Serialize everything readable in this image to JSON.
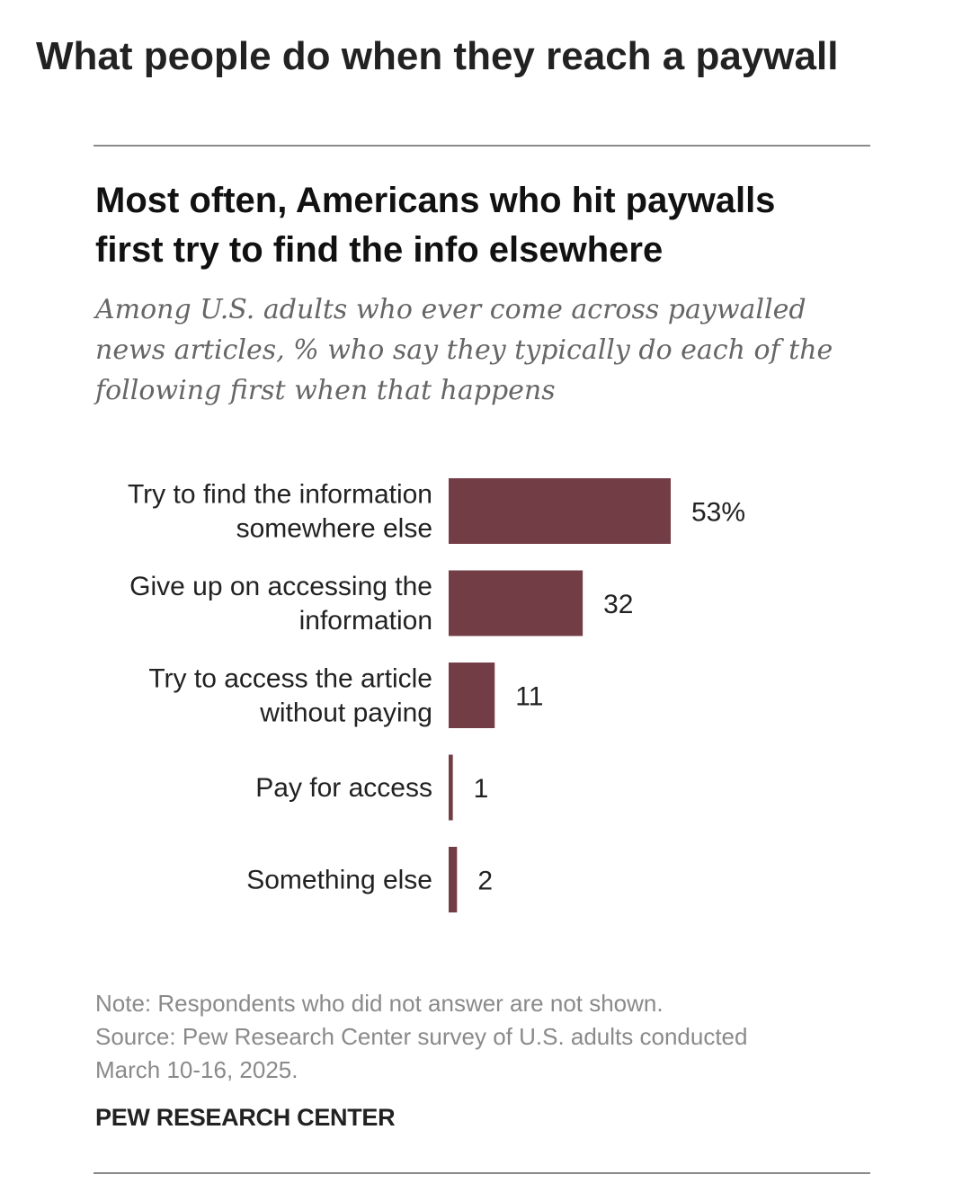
{
  "page": {
    "title": "What people do when they reach a paywall"
  },
  "chart": {
    "title_lines": [
      "Most often, Americans who hit paywalls",
      "first try to find the info elsewhere"
    ],
    "subtitle_lines": [
      "Among U.S. adults who ever come across paywalled",
      "news articles, % who say they typically do each of the",
      "following first when that happens"
    ],
    "note_lines": [
      "Note: Respondents who did not answer are not shown.",
      "Source: Pew Research Center survey of U.S. adults conducted",
      "March 10-16, 2025."
    ],
    "brand": "PEW RESEARCH CENTER"
  },
  "chart_data": {
    "type": "bar",
    "orientation": "horizontal",
    "categories": [
      [
        "Try to find the information",
        "somewhere else"
      ],
      [
        "Give up on accessing the",
        "information"
      ],
      [
        "Try to access the article",
        "without paying"
      ],
      [
        "Pay for access"
      ],
      [
        "Something else"
      ]
    ],
    "values": [
      53,
      32,
      11,
      1,
      2
    ],
    "value_labels": [
      "53%",
      "32",
      "11",
      "1",
      "2"
    ],
    "bar_color": "#733d46",
    "xlim": [
      0,
      53
    ],
    "grid": false,
    "legend": false
  }
}
